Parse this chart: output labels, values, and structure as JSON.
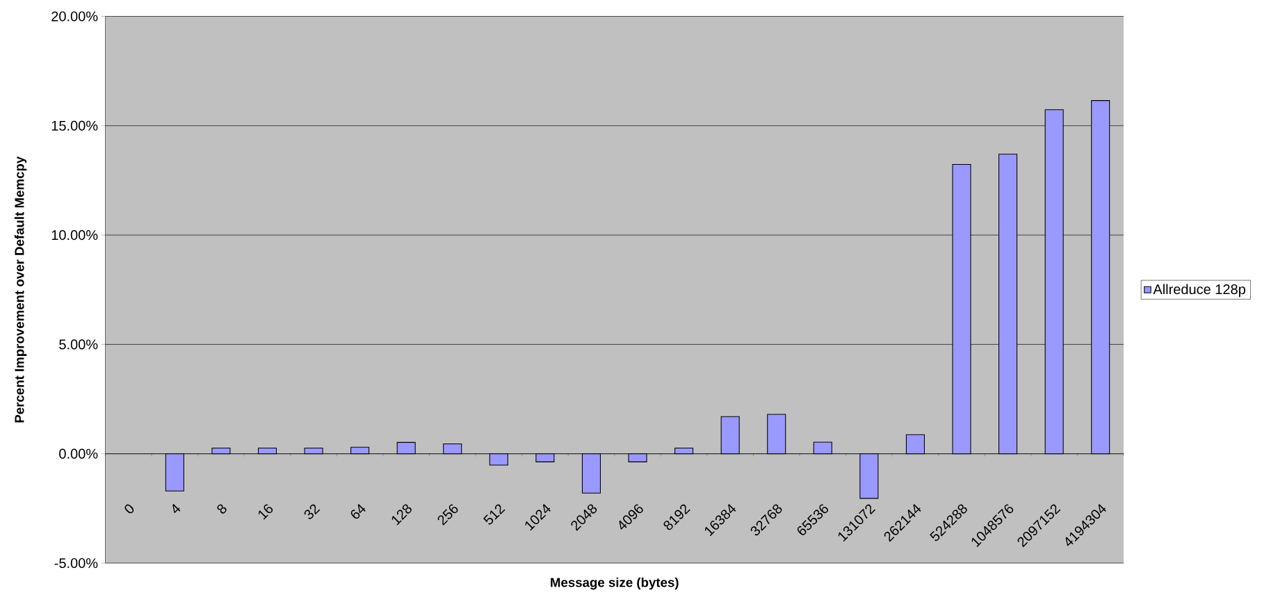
{
  "chart_data": {
    "type": "bar",
    "xlabel": "Message size (bytes)",
    "ylabel": "Percent Improvement over Default Memcpy",
    "categories": [
      "0",
      "4",
      "8",
      "16",
      "32",
      "64",
      "128",
      "256",
      "512",
      "1024",
      "2048",
      "4096",
      "8192",
      "16384",
      "32768",
      "65536",
      "131072",
      "262144",
      "524288",
      "1048576",
      "2097152",
      "4194304"
    ],
    "series": [
      {
        "name": "Allreduce 128p",
        "color": "#9999ff",
        "values": [
          null,
          -1.7,
          0.26,
          0.26,
          0.26,
          0.3,
          0.52,
          0.45,
          -0.52,
          -0.37,
          -1.8,
          -0.37,
          0.26,
          1.7,
          1.8,
          0.53,
          -2.04,
          0.87,
          13.23,
          13.7,
          15.73,
          16.15
        ]
      }
    ],
    "ylim": [
      -5,
      20
    ],
    "yticks": [
      {
        "value": -5,
        "label": "-5.00%"
      },
      {
        "value": 0,
        "label": "0.00%"
      },
      {
        "value": 5,
        "label": "5.00%"
      },
      {
        "value": 10,
        "label": "10.00%"
      },
      {
        "value": 15,
        "label": "15.00%"
      },
      {
        "value": 20,
        "label": "20.00%"
      }
    ],
    "grid": "y",
    "legend": "right"
  }
}
